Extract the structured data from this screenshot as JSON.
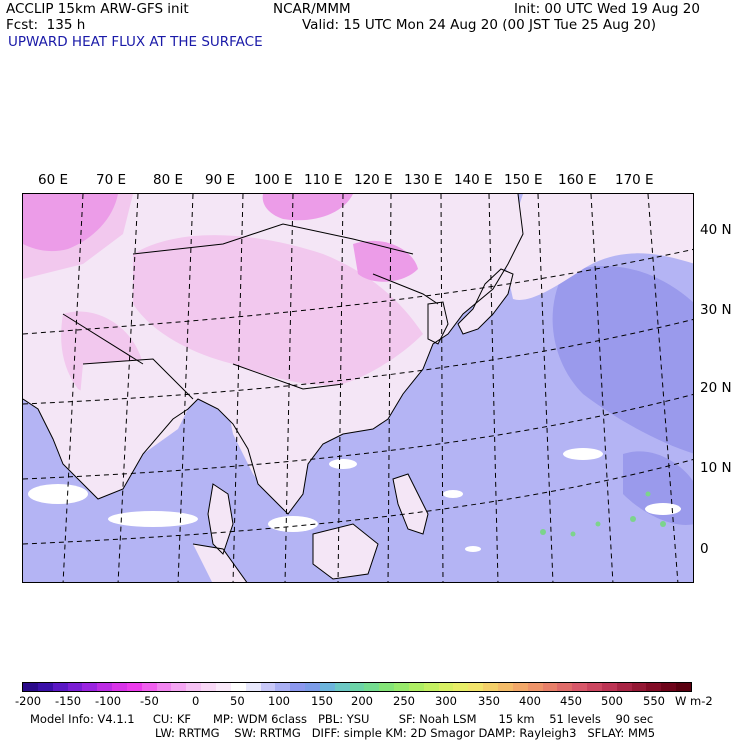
{
  "header": {
    "left_line1": "ACCLIP 15km ARW-GFS init",
    "left_line2": "Fcst:  135 h",
    "center": "NCAR/MMM",
    "init": "Init: 00 UTC Wed 19 Aug 20",
    "valid": "Valid: 15 UTC Mon 24 Aug 20 (00 JST Tue 25 Aug 20)",
    "field_title": "UPWARD HEAT FLUX AT THE SURFACE"
  },
  "map": {
    "lon_labels": [
      "60 E",
      "70 E",
      "80 E",
      "90 E",
      "100 E",
      "110 E",
      "120 E",
      "130 E",
      "140 E",
      "150 E",
      "160 E",
      "170 E"
    ],
    "lat_labels": [
      "40 N",
      "30 N",
      "20 N",
      "10 N",
      "0"
    ],
    "colors": {
      "ocean": "#b4b4f4",
      "ocean_dark": "#9a9aec",
      "land_light": "#f4e6f6",
      "land_pink": "#f2c8ee",
      "land_magenta": "#ec9ce8",
      "white_patch": "#ffffff",
      "green_dot": "#7cd48c"
    }
  },
  "colorbar": {
    "ticks": [
      "-200",
      "-150",
      "-100",
      "-50",
      "0",
      "50",
      "100",
      "150",
      "200",
      "250",
      "300",
      "350",
      "400",
      "450",
      "500",
      "550"
    ],
    "unit": "W m-2",
    "colors": [
      "#2a0a8a",
      "#3a10a8",
      "#5a18c4",
      "#7a1ed4",
      "#9a24e0",
      "#bc2ce4",
      "#d834e8",
      "#ec3cec",
      "#f060ee",
      "#f286f0",
      "#f4a6f2",
      "#f6c2f4",
      "#f8d8f6",
      "#faeafa",
      "#ffffff",
      "#e8e8fc",
      "#c8c8f8",
      "#aab0f4",
      "#8c98ee",
      "#7c9ce8",
      "#6cb4dc",
      "#6cc8c4",
      "#6cd4a8",
      "#74dc90",
      "#84e478",
      "#98ea6c",
      "#aeee64",
      "#c4f062",
      "#d8f064",
      "#e8ee68",
      "#f2e46c",
      "#f4d06a",
      "#f4bc6a",
      "#f2a86a",
      "#ee946a",
      "#e8806a",
      "#e06c6a",
      "#d8586a",
      "#cc4660",
      "#bc3454",
      "#a82444",
      "#941834",
      "#820c26",
      "#6e041a",
      "#5a0010"
    ]
  },
  "footer": {
    "line1": "Model Info: V4.1.1     CU: KF      MP: WDM 6class   PBL: YSU        SF: Noah LSM      15 km    51 levels    90 sec",
    "line2": "LW: RRTMG    SW: RRTMG   DIFF: simple KM: 2D Smagor DAMP: Rayleigh3   SFLAY: MM5"
  }
}
